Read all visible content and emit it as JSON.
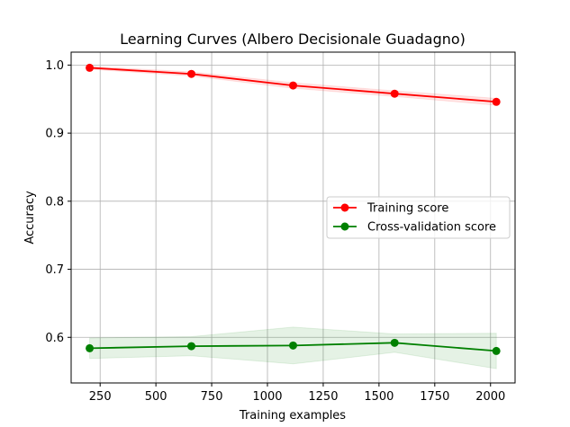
{
  "chart_data": {
    "type": "line",
    "title": "Learning Curves (Albero Decisionale Guadagno)",
    "xlabel": "Training examples",
    "ylabel": "Accuracy",
    "xlim": [
      120,
      2110
    ],
    "ylim": [
      0.533,
      1.019
    ],
    "x_ticks": [
      250,
      500,
      750,
      1000,
      1250,
      1500,
      1750,
      2000
    ],
    "y_ticks": [
      0.6,
      0.7,
      0.8,
      0.9,
      1.0
    ],
    "grid": true,
    "legend_position": "center-right",
    "x": [
      203,
      659,
      1115,
      1570,
      2026
    ],
    "series": [
      {
        "name": "Training score",
        "color": "#ff0000",
        "marker": "circle",
        "values": [
          0.996,
          0.987,
          0.97,
          0.958,
          0.946
        ],
        "band_lower": [
          0.994,
          0.984,
          0.966,
          0.954,
          0.941
        ],
        "band_upper": [
          0.998,
          0.99,
          0.974,
          0.962,
          0.951
        ]
      },
      {
        "name": "Cross-validation score",
        "color": "#008000",
        "marker": "circle",
        "values": [
          0.584,
          0.587,
          0.588,
          0.592,
          0.58
        ],
        "band_lower": [
          0.569,
          0.573,
          0.561,
          0.578,
          0.554
        ],
        "band_upper": [
          0.599,
          0.601,
          0.615,
          0.605,
          0.606
        ]
      }
    ]
  }
}
